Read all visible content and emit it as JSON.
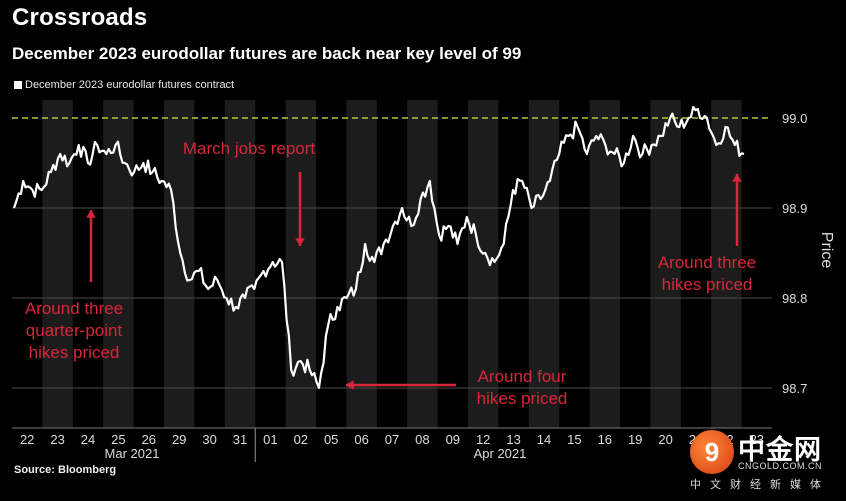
{
  "header": {
    "title": "Crossroads",
    "subtitle": "December 2023 eurodollar futures are back near key level of 99"
  },
  "source": "Source: Bloomberg",
  "watermark": {
    "glyph": "9",
    "main": "中金网",
    "url": "CNGOLD.COM.CN",
    "sub": "中文财经新媒体"
  },
  "colors": {
    "background": "#000000",
    "shade": "#1c1c1c",
    "line": "#ffffff",
    "reference": "#b5c93a",
    "annotation": "#d8263a",
    "axis_text": "#dddddd"
  },
  "chart_data": {
    "type": "line",
    "title": "Crossroads",
    "subtitle": "December 2023 eurodollar futures are back near key level of 99",
    "ylabel": "Price",
    "ylim": [
      98.65,
      99.06
    ],
    "yticks": [
      98.7,
      98.8,
      98.9,
      99.0
    ],
    "ytick_labels": [
      "98.7",
      "98.8",
      "98.9",
      "99.0"
    ],
    "x_labels": [
      "22",
      "23",
      "24",
      "25",
      "26",
      "29",
      "30",
      "31",
      "01",
      "02",
      "05",
      "06",
      "07",
      "08",
      "09",
      "12",
      "13",
      "14",
      "15",
      "16",
      "19",
      "20",
      "21",
      "22",
      "23"
    ],
    "month_labels": [
      "Mar 2021",
      "Apr 2021"
    ],
    "reference_line": 99.0,
    "grid": true,
    "legend_position": "top-left",
    "series": [
      {
        "name": "December 2023 eurodollar futures contract",
        "values": [
          98.9,
          98.93,
          98.92,
          98.92,
          98.94,
          98.96,
          98.95,
          98.97,
          98.95,
          98.97,
          98.96,
          98.97,
          98.95,
          98.94,
          98.95,
          98.94,
          98.93,
          98.92,
          98.85,
          98.82,
          98.83,
          98.81,
          98.82,
          98.8,
          98.79,
          98.8,
          98.81,
          98.83,
          98.84,
          98.84,
          98.72,
          98.73,
          98.72,
          98.7,
          98.77,
          98.79,
          98.8,
          98.81,
          98.86,
          98.84,
          98.86,
          98.88,
          98.9,
          98.88,
          98.91,
          98.93,
          98.87,
          98.88,
          98.86,
          98.89,
          98.87,
          98.85,
          98.84,
          98.86,
          98.92,
          98.93,
          98.9,
          98.91,
          98.93,
          98.96,
          98.98,
          98.99,
          98.96,
          98.98,
          98.97,
          98.96,
          98.95,
          98.98,
          98.96,
          98.97,
          98.98,
          99.0,
          98.99,
          99.0,
          99.01,
          99.0,
          98.97,
          98.99,
          98.97,
          98.96
        ]
      }
    ],
    "annotations": [
      {
        "text": "March jobs report"
      },
      {
        "text": "Around three quarter-point hikes priced",
        "lines": [
          "Around three",
          "quarter-point",
          "hikes priced"
        ]
      },
      {
        "text": "Around four hikes priced",
        "lines": [
          "Around four",
          "hikes priced"
        ]
      },
      {
        "text": "Around three hikes priced",
        "lines": [
          "Around three",
          "hikes priced"
        ]
      }
    ]
  }
}
